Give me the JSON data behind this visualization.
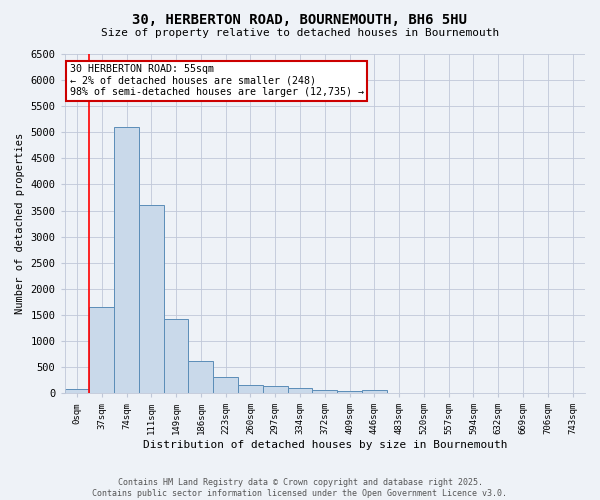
{
  "title_line1": "30, HERBERTON ROAD, BOURNEMOUTH, BH6 5HU",
  "title_line2": "Size of property relative to detached houses in Bournemouth",
  "xlabel": "Distribution of detached houses by size in Bournemouth",
  "ylabel": "Number of detached properties",
  "annotation_title": "30 HERBERTON ROAD: 55sqm",
  "annotation_line2": "← 2% of detached houses are smaller (248)",
  "annotation_line3": "98% of semi-detached houses are larger (12,735) →",
  "bar_labels": [
    "0sqm",
    "37sqm",
    "74sqm",
    "111sqm",
    "149sqm",
    "186sqm",
    "223sqm",
    "260sqm",
    "297sqm",
    "334sqm",
    "372sqm",
    "409sqm",
    "446sqm",
    "483sqm",
    "520sqm",
    "557sqm",
    "594sqm",
    "632sqm",
    "669sqm",
    "706sqm",
    "743sqm"
  ],
  "bar_values": [
    75,
    1650,
    5100,
    3600,
    1430,
    620,
    310,
    165,
    130,
    100,
    55,
    40,
    55,
    5,
    0,
    0,
    0,
    0,
    0,
    0,
    0
  ],
  "bar_color": "#c9d9ea",
  "bar_edge_color": "#5b8db8",
  "red_line_x": 1.0,
  "ylim": [
    0,
    6500
  ],
  "yticks": [
    0,
    500,
    1000,
    1500,
    2000,
    2500,
    3000,
    3500,
    4000,
    4500,
    5000,
    5500,
    6000,
    6500
  ],
  "annotation_box_color": "#ffffff",
  "annotation_box_edge": "#cc0000",
  "footer_line1": "Contains HM Land Registry data © Crown copyright and database right 2025.",
  "footer_line2": "Contains public sector information licensed under the Open Government Licence v3.0.",
  "background_color": "#eef2f7",
  "grid_color": "#c0c8d8"
}
